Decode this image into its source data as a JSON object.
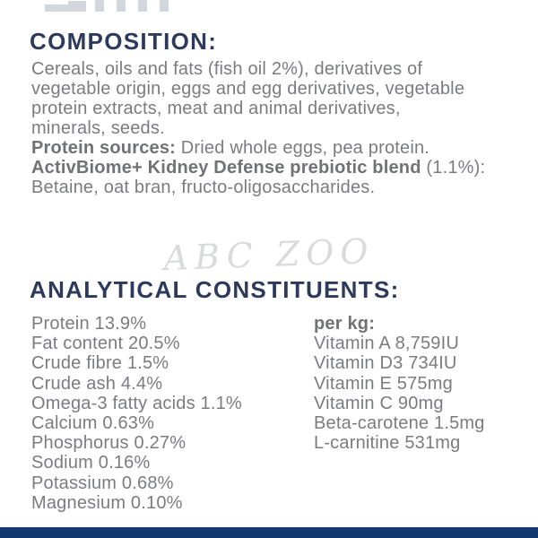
{
  "colors": {
    "heading": "#2e3a5c",
    "body_text": "#7b7c80",
    "bold_text": "#717276",
    "watermark": "#d9dadc",
    "footer_bar": "#12396f",
    "background": "#ffffff"
  },
  "composition": {
    "heading": "COMPOSITION:",
    "lines": [
      "Cereals, oils and fats (fish oil 2%), derivatives of",
      "vegetable origin, eggs and egg derivatives, vegetable",
      "protein extracts, meat and animal derivatives,",
      "minerals, seeds."
    ],
    "protein_sources_label": "Protein sources:",
    "protein_sources_value": " Dried whole eggs, pea protein.",
    "prebiotic_label": "ActivBiome+ Kidney Defense prebiotic blend",
    "prebiotic_suffix": " (1.1%):",
    "prebiotic_line2": "Betaine, oat bran, fructo-oligosaccharides."
  },
  "watermark": "ABC ZOO",
  "analytical": {
    "heading": "ANALYTICAL CONSTITUENTS:",
    "left_column": [
      "Protein 13.9%",
      "Fat content 20.5%",
      "Crude fibre 1.5%",
      "Crude ash 4.4%",
      "Omega-3 fatty acids 1.1%",
      "Calcium 0.63%",
      "Phosphorus 0.27%",
      "Sodium 0.16%",
      "Potassium 0.68%",
      "Magnesium 0.10%"
    ],
    "per_kg_label": "per kg:",
    "right_column": [
      "Vitamin A 8,759IU",
      "Vitamin D3 734IU",
      "Vitamin E 575mg",
      "Vitamin C 90mg",
      "Beta-carotene 1.5mg",
      "L-carnitine 531mg"
    ]
  }
}
